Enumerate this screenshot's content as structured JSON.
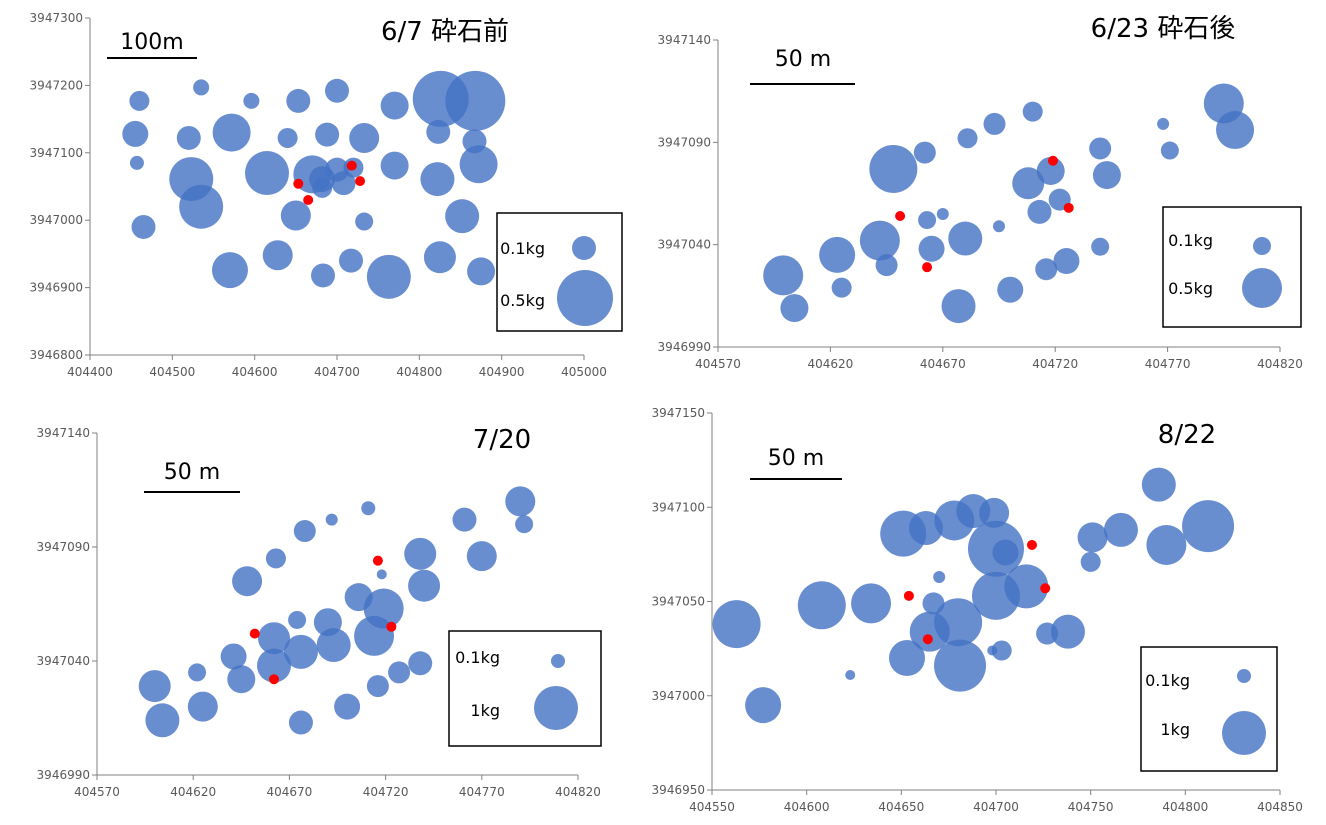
{
  "colors": {
    "bubble": "#4472C4",
    "highlight": "#FF0000",
    "axis": "#808080"
  },
  "chart_data": [
    {
      "type": "scatter",
      "title": "6/7 砕石前",
      "xlim": [
        404400,
        405000
      ],
      "ylim": [
        3946800,
        3947300
      ],
      "xticks": [
        "404400",
        "404500",
        "404600",
        "404700",
        "404800",
        "404900",
        "405000"
      ],
      "yticks": [
        "3946800",
        "3946900",
        "3947000",
        "3947100",
        "3947200",
        "3947300"
      ],
      "scalebar_label": "100m",
      "legend": {
        "small_label": "0.1kg",
        "small_r": 12,
        "large_label": "0.5kg",
        "large_r": 28
      },
      "points": [
        [
          404460,
          3947177,
          10
        ],
        [
          404455,
          3947128,
          13
        ],
        [
          404457,
          3947085,
          7
        ],
        [
          404465,
          3946990,
          12
        ],
        [
          404535,
          3947197,
          8
        ],
        [
          404520,
          3947122,
          12
        ],
        [
          404523,
          3947061,
          22
        ],
        [
          404535,
          3947020,
          22
        ],
        [
          404572,
          3947130,
          19
        ],
        [
          404570,
          3946926,
          18
        ],
        [
          404596,
          3947177,
          8
        ],
        [
          404615,
          3947070,
          22
        ],
        [
          404628,
          3946948,
          15
        ],
        [
          404640,
          3947122,
          10
        ],
        [
          404653,
          3947177,
          12
        ],
        [
          404650,
          3947007,
          15
        ],
        [
          404670,
          3947068,
          19
        ],
        [
          404682,
          3947048,
          10
        ],
        [
          404682,
          3947061,
          13
        ],
        [
          404688,
          3947127,
          12
        ],
        [
          404700,
          3947192,
          12
        ],
        [
          404700,
          3947075,
          12
        ],
        [
          404708,
          3947055,
          12
        ],
        [
          404720,
          3947078,
          10
        ],
        [
          404733,
          3947122,
          15
        ],
        [
          404733,
          3946998,
          9
        ],
        [
          404717,
          3946940,
          12
        ],
        [
          404683,
          3946918,
          12
        ],
        [
          404763,
          3946916,
          22
        ],
        [
          404770,
          3947170,
          14
        ],
        [
          404770,
          3947081,
          14
        ],
        [
          404823,
          3947131,
          12
        ],
        [
          404822,
          3947061,
          17
        ],
        [
          404825,
          3946945,
          16
        ],
        [
          404826,
          3947180,
          28
        ],
        [
          404852,
          3947006,
          17
        ],
        [
          404867,
          3947117,
          12
        ],
        [
          404868,
          3947177,
          30
        ],
        [
          404872,
          3947083,
          19
        ],
        [
          404875,
          3946924,
          14
        ]
      ],
      "red_points": [
        [
          404653,
          3947054
        ],
        [
          404665,
          3947030
        ],
        [
          404718,
          3947081
        ],
        [
          404728,
          3947058
        ]
      ]
    },
    {
      "type": "scatter",
      "title": "6/23 砕石後",
      "xlim": [
        404570,
        404820
      ],
      "ylim": [
        3946990,
        3947140
      ],
      "xticks": [
        "404570",
        "404620",
        "404670",
        "404720",
        "404770",
        "404820"
      ],
      "yticks": [
        "3946990",
        "3947040",
        "3947090",
        "3947140"
      ],
      "scalebar_label": "50 m",
      "legend": {
        "small_label": "0.1kg",
        "small_r": 9,
        "large_label": "0.5kg",
        "large_r": 20
      },
      "points": [
        [
          404599,
          3947025,
          20
        ],
        [
          404604,
          3947009,
          14
        ],
        [
          404623,
          3947035,
          18
        ],
        [
          404625,
          3947019,
          10
        ],
        [
          404642,
          3947042,
          20
        ],
        [
          404645,
          3947030,
          11
        ],
        [
          404648,
          3947077,
          24
        ],
        [
          404662,
          3947085,
          11
        ],
        [
          404663,
          3947052,
          9
        ],
        [
          404665,
          3947038,
          13
        ],
        [
          404670,
          3947055,
          6
        ],
        [
          404677,
          3947010,
          17
        ],
        [
          404680,
          3947043,
          17
        ],
        [
          404681,
          3947092,
          10
        ],
        [
          404693,
          3947099,
          11
        ],
        [
          404695,
          3947049,
          6
        ],
        [
          404700,
          3947018,
          13
        ],
        [
          404708,
          3947070,
          16
        ],
        [
          404710,
          3947105,
          10
        ],
        [
          404713,
          3947056,
          12
        ],
        [
          404716,
          3947028,
          11
        ],
        [
          404718,
          3947076,
          14
        ],
        [
          404722,
          3947062,
          11
        ],
        [
          404725,
          3947032,
          13
        ],
        [
          404740,
          3947039,
          9
        ],
        [
          404740,
          3947087,
          11
        ],
        [
          404743,
          3947074,
          14
        ],
        [
          404768,
          3947099,
          6
        ],
        [
          404771,
          3947086,
          9
        ],
        [
          404795,
          3947109,
          20
        ],
        [
          404800,
          3947096,
          19
        ]
      ],
      "red_points": [
        [
          404651,
          3947054
        ],
        [
          404663,
          3947029
        ],
        [
          404719,
          3947081
        ],
        [
          404726,
          3947058
        ]
      ]
    },
    {
      "type": "scatter",
      "title": "7/20",
      "xlim": [
        404570,
        404820
      ],
      "ylim": [
        3946990,
        3947140
      ],
      "xticks": [
        "404570",
        "404620",
        "404670",
        "404720",
        "404770",
        "404820"
      ],
      "yticks": [
        "3946990",
        "3947040",
        "3947090",
        "3947140"
      ],
      "scalebar_label": "50 m",
      "legend": {
        "small_label": "0.1kg",
        "small_r": 7,
        "large_label": "1kg",
        "large_r": 22
      },
      "points": [
        [
          404600,
          3947029,
          16
        ],
        [
          404604,
          3947014,
          17
        ],
        [
          404622,
          3947035,
          9
        ],
        [
          404625,
          3947020,
          15
        ],
        [
          404641,
          3947042,
          13
        ],
        [
          404645,
          3947032,
          14
        ],
        [
          404648,
          3947075,
          15
        ],
        [
          404662,
          3947050,
          16
        ],
        [
          404662,
          3947038,
          17
        ],
        [
          404663,
          3947085,
          10
        ],
        [
          404674,
          3947058,
          9
        ],
        [
          404676,
          3947044,
          17
        ],
        [
          404676,
          3947013,
          12
        ],
        [
          404678,
          3947097,
          11
        ],
        [
          404690,
          3947057,
          14
        ],
        [
          404692,
          3947102,
          6
        ],
        [
          404693,
          3947047,
          17
        ],
        [
          404700,
          3947020,
          13
        ],
        [
          404706,
          3947068,
          14
        ],
        [
          404711,
          3947107,
          7
        ],
        [
          404714,
          3947051,
          20
        ],
        [
          404716,
          3947029,
          11
        ],
        [
          404718,
          3947078,
          5
        ],
        [
          404719,
          3947063,
          20
        ],
        [
          404727,
          3947035,
          11
        ],
        [
          404738,
          3947087,
          16
        ],
        [
          404740,
          3947073,
          16
        ],
        [
          404738,
          3947039,
          12
        ],
        [
          404761,
          3947102,
          12
        ],
        [
          404770,
          3947086,
          15
        ],
        [
          404790,
          3947110,
          15
        ],
        [
          404792,
          3947100,
          9
        ]
      ],
      "red_points": [
        [
          404652,
          3947052
        ],
        [
          404662,
          3947032
        ],
        [
          404716,
          3947084
        ],
        [
          404723,
          3947055
        ]
      ]
    },
    {
      "type": "scatter",
      "title": "8/22",
      "xlim": [
        404550,
        404850
      ],
      "ylim": [
        3946950,
        3947150
      ],
      "xticks": [
        "404550",
        "404600",
        "404650",
        "404700",
        "404750",
        "404800",
        "404850"
      ],
      "yticks": [
        "3946950",
        "3947000",
        "3947050",
        "3947100",
        "3947150"
      ],
      "scalebar_label": "50 m",
      "legend": {
        "small_label": "0.1kg",
        "small_r": 7,
        "large_label": "1kg",
        "large_r": 22
      },
      "points": [
        [
          404563,
          3947038,
          24
        ],
        [
          404577,
          3946995,
          18
        ],
        [
          404608,
          3947048,
          24
        ],
        [
          404623,
          3947011,
          5
        ],
        [
          404634,
          3947049,
          20
        ],
        [
          404651,
          3947086,
          23
        ],
        [
          404653,
          3947020,
          18
        ],
        [
          404663,
          3947089,
          17
        ],
        [
          404665,
          3947034,
          20
        ],
        [
          404667,
          3947049,
          11
        ],
        [
          404670,
          3947063,
          6
        ],
        [
          404678,
          3947093,
          20
        ],
        [
          404680,
          3947039,
          24
        ],
        [
          404681,
          3947016,
          26
        ],
        [
          404688,
          3947098,
          17
        ],
        [
          404698,
          3947024,
          5
        ],
        [
          404699,
          3947097,
          15
        ],
        [
          404700,
          3947078,
          28
        ],
        [
          404700,
          3947053,
          24
        ],
        [
          404703,
          3947024,
          10
        ],
        [
          404705,
          3947076,
          13
        ],
        [
          404716,
          3947058,
          22
        ],
        [
          404727,
          3947033,
          11
        ],
        [
          404738,
          3947034,
          17
        ],
        [
          404750,
          3947071,
          10
        ],
        [
          404751,
          3947084,
          15
        ],
        [
          404766,
          3947088,
          17
        ],
        [
          404786,
          3947112,
          17
        ],
        [
          404790,
          3947080,
          20
        ],
        [
          404812,
          3947090,
          26
        ]
      ],
      "red_points": [
        [
          404654,
          3947053
        ],
        [
          404664,
          3947030
        ],
        [
          404719,
          3947080
        ],
        [
          404726,
          3947057
        ]
      ]
    }
  ]
}
